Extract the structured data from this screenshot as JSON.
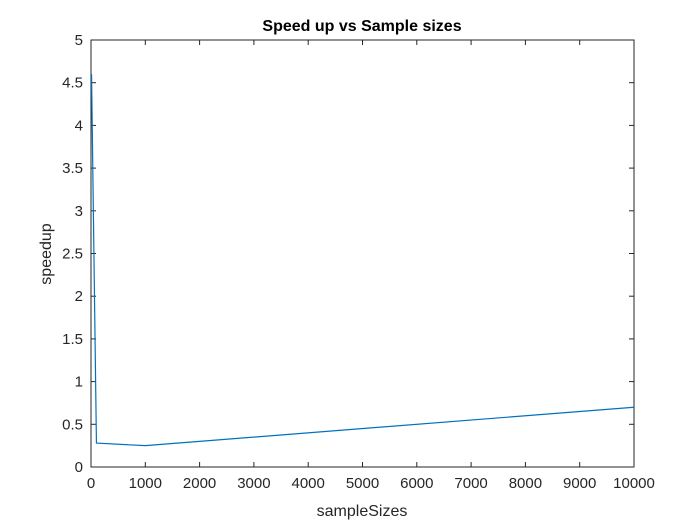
{
  "chart_data": {
    "type": "line",
    "title": "Speed up vs Sample sizes",
    "xlabel": "sampleSizes",
    "ylabel": "speedup",
    "xlim": [
      0,
      10000
    ],
    "ylim": [
      0,
      5
    ],
    "xticks": [
      0,
      1000,
      2000,
      3000,
      4000,
      5000,
      6000,
      7000,
      8000,
      9000,
      10000
    ],
    "xtick_labels": [
      "0",
      "1000",
      "2000",
      "3000",
      "4000",
      "5000",
      "6000",
      "7000",
      "8000",
      "9000",
      "10000"
    ],
    "yticks": [
      0,
      0.5,
      1,
      1.5,
      2,
      2.5,
      3,
      3.5,
      4,
      4.5,
      5
    ],
    "ytick_labels": [
      "0",
      "0.5",
      "1",
      "1.5",
      "2",
      "2.5",
      "3",
      "3.5",
      "4",
      "4.5",
      "5"
    ],
    "grid": false,
    "box": true,
    "series": [
      {
        "color": "#0072bd",
        "x": [
          10,
          100,
          1000,
          10000
        ],
        "y": [
          4.6,
          0.28,
          0.25,
          0.7
        ]
      }
    ]
  }
}
